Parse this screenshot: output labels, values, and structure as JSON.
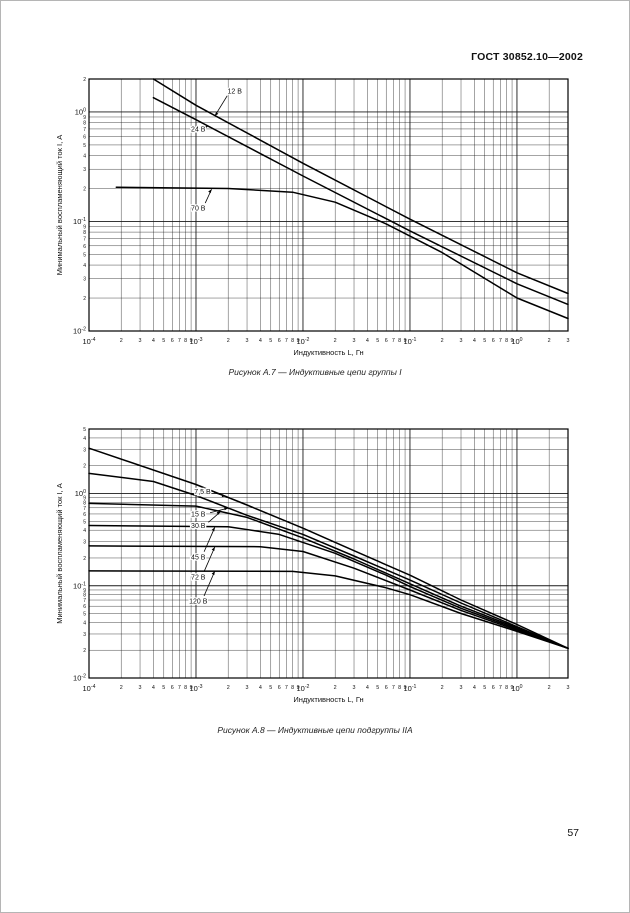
{
  "page": {
    "header": "ГОСТ 30852.10—2002",
    "page_number": "57"
  },
  "chart_data": [
    {
      "type": "line",
      "scale": "log-log",
      "caption": "Рисунок А.7 — Индуктивные цепи группы I",
      "xlabel": "Индуктивность L, Гн",
      "ylabel": "Минимальный воспламеняющий ток I, А",
      "xlim": [
        0.0001,
        3
      ],
      "ylim": [
        0.01,
        2
      ],
      "grid": "log major+minor, both axes",
      "legend_position": "inline-labels",
      "series": [
        {
          "name": "12 В",
          "points": [
            [
              0.0004,
              2.0
            ],
            [
              0.001,
              1.15
            ],
            [
              0.01,
              0.34
            ],
            [
              0.1,
              0.105
            ],
            [
              1,
              0.034
            ],
            [
              3,
              0.022
            ]
          ],
          "label_at": [
            0.0023,
            1.55
          ],
          "arrow_to": [
            0.0015,
            0.92
          ]
        },
        {
          "name": "24 В",
          "points": [
            [
              0.0004,
              1.35
            ],
            [
              0.001,
              0.85
            ],
            [
              0.01,
              0.26
            ],
            [
              0.1,
              0.082
            ],
            [
              1,
              0.027
            ],
            [
              3,
              0.0175
            ]
          ],
          "label_at": [
            0.00105,
            0.7
          ],
          "arrow_to": [
            0.0013,
            0.74
          ]
        },
        {
          "name": "70 В",
          "points": [
            [
              0.00018,
              0.205
            ],
            [
              0.002,
              0.2
            ],
            [
              0.008,
              0.185
            ],
            [
              0.02,
              0.15
            ],
            [
              0.06,
              0.095
            ],
            [
              0.2,
              0.052
            ],
            [
              1,
              0.02
            ],
            [
              3,
              0.013
            ]
          ],
          "label_at": [
            0.00105,
            0.133
          ],
          "arrow_to": [
            0.0014,
            0.197
          ]
        }
      ]
    },
    {
      "type": "line",
      "scale": "log-log",
      "caption": "Рисунок А.8 — Индуктивные цепи подгруппы IIA",
      "xlabel": "Индуктивность L, Гн",
      "ylabel": "Минимальный воспламеняющий ток I, А",
      "xlim": [
        0.0001,
        3
      ],
      "ylim": [
        0.01,
        5
      ],
      "grid": "log major+minor, both axes",
      "legend_position": "inline-labels",
      "series": [
        {
          "name": "7,5 В",
          "points": [
            [
              0.0001,
              3.1
            ],
            [
              0.001,
              1.25
            ],
            [
              0.003,
              0.75
            ],
            [
              0.01,
              0.42
            ],
            [
              0.03,
              0.24
            ],
            [
              0.1,
              0.13
            ],
            [
              0.3,
              0.07
            ],
            [
              1,
              0.038
            ],
            [
              3,
              0.021
            ]
          ],
          "label_at": [
            0.00115,
            1.05
          ],
          "arrow_to": [
            0.0019,
            0.93
          ]
        },
        {
          "name": "15 В",
          "points": [
            [
              0.0001,
              1.65
            ],
            [
              0.0004,
              1.35
            ],
            [
              0.001,
              0.95
            ],
            [
              0.003,
              0.58
            ],
            [
              0.01,
              0.36
            ],
            [
              0.03,
              0.21
            ],
            [
              0.1,
              0.115
            ],
            [
              0.3,
              0.065
            ],
            [
              1,
              0.036
            ],
            [
              3,
              0.021
            ]
          ],
          "label_at": [
            0.00105,
            0.6
          ],
          "arrow_to": [
            0.002,
            0.695
          ]
        },
        {
          "name": "30 В",
          "points": [
            [
              0.0001,
              0.78
            ],
            [
              0.001,
              0.73
            ],
            [
              0.003,
              0.55
            ],
            [
              0.01,
              0.33
            ],
            [
              0.03,
              0.195
            ],
            [
              0.1,
              0.105
            ],
            [
              0.3,
              0.06
            ],
            [
              1,
              0.035
            ],
            [
              3,
              0.021
            ]
          ],
          "label_at": [
            0.00105,
            0.45
          ],
          "arrow_to": [
            0.0017,
            0.637
          ]
        },
        {
          "name": "45 В",
          "points": [
            [
              0.0001,
              0.45
            ],
            [
              0.002,
              0.435
            ],
            [
              0.006,
              0.36
            ],
            [
              0.02,
              0.225
            ],
            [
              0.06,
              0.13
            ],
            [
              0.1,
              0.098
            ],
            [
              0.3,
              0.057
            ],
            [
              1,
              0.034
            ],
            [
              3,
              0.021
            ]
          ],
          "label_at": [
            0.00105,
            0.205
          ],
          "arrow_to": [
            0.0015,
            0.43
          ]
        },
        {
          "name": "72 В",
          "points": [
            [
              0.0001,
              0.27
            ],
            [
              0.004,
              0.265
            ],
            [
              0.01,
              0.235
            ],
            [
              0.03,
              0.155
            ],
            [
              0.1,
              0.09
            ],
            [
              0.3,
              0.054
            ],
            [
              1,
              0.033
            ],
            [
              3,
              0.021
            ]
          ],
          "label_at": [
            0.00105,
            0.125
          ],
          "arrow_to": [
            0.0015,
            0.263
          ]
        },
        {
          "name": "120 В",
          "points": [
            [
              0.0001,
              0.145
            ],
            [
              0.008,
              0.143
            ],
            [
              0.02,
              0.128
            ],
            [
              0.06,
              0.095
            ],
            [
              0.1,
              0.08
            ],
            [
              0.3,
              0.05
            ],
            [
              1,
              0.032
            ],
            [
              3,
              0.021
            ]
          ],
          "label_at": [
            0.00105,
            0.068
          ],
          "arrow_to": [
            0.0015,
            0.144
          ]
        }
      ]
    }
  ]
}
